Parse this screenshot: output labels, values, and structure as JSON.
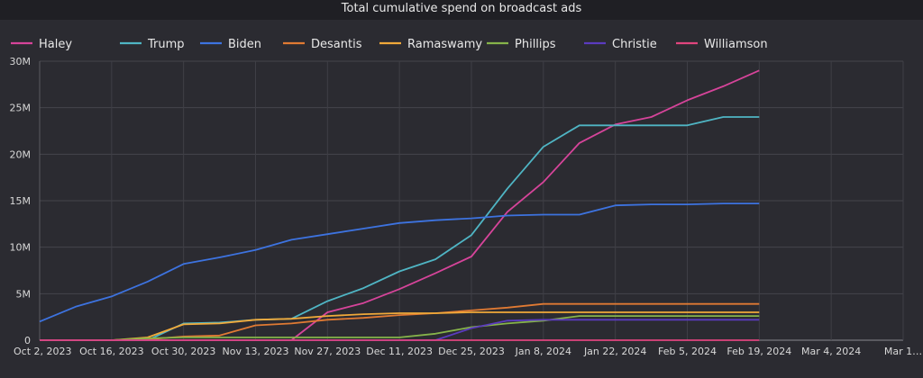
{
  "chart_data": {
    "type": "line",
    "title": "Total cumulative spend on broadcast ads",
    "x": [
      "Oct 2, 2023",
      "Oct 9, 2023",
      "Oct 16, 2023",
      "Oct 23, 2023",
      "Oct 30, 2023",
      "Nov 6, 2023",
      "Nov 13, 2023",
      "Nov 20, 2023",
      "Nov 27, 2023",
      "Dec 4, 2023",
      "Dec 11, 2023",
      "Dec 18, 2023",
      "Dec 25, 2023",
      "Jan 1, 2024",
      "Jan 8, 2024",
      "Jan 15, 2024",
      "Jan 22, 2024",
      "Jan 29, 2024",
      "Feb 5, 2024",
      "Feb 12, 2024",
      "Feb 19, 2024"
    ],
    "x_ticks": [
      "Oct 2, 2023",
      "Oct 16, 2023",
      "Oct 30, 2023",
      "Nov 13, 2023",
      "Nov 27, 2023",
      "Dec 11, 2023",
      "Dec 25, 2023",
      "Jan 8, 2024",
      "Jan 22, 2024",
      "Feb 5, 2024",
      "Feb 19, 2024",
      "Mar 4, 2024",
      "Mar 1…"
    ],
    "y_ticks": [
      "0",
      "5M",
      "10M",
      "15M",
      "20M",
      "25M",
      "30M"
    ],
    "ylim": [
      0,
      30000000
    ],
    "grid": true,
    "legend_position": "top-left",
    "series": [
      {
        "name": "Haley",
        "color": "#d6449a",
        "values": [
          0,
          0,
          0,
          0,
          0,
          0,
          0,
          0,
          3000000,
          4000000,
          5500000,
          7200000,
          9000000,
          13800000,
          17000000,
          21200000,
          23200000,
          24000000,
          25800000,
          27300000,
          29000000
        ]
      },
      {
        "name": "Trump",
        "color": "#4fb5c4",
        "values": [
          0,
          0,
          0,
          0,
          1800000,
          1900000,
          2200000,
          2300000,
          4200000,
          5600000,
          7400000,
          8700000,
          11300000,
          16300000,
          20800000,
          23100000,
          23100000,
          23100000,
          23100000,
          24000000,
          24000000
        ]
      },
      {
        "name": "Biden",
        "color": "#3d73e0",
        "values": [
          2000000,
          3600000,
          4700000,
          6300000,
          8200000,
          8900000,
          9700000,
          10800000,
          11400000,
          12000000,
          12600000,
          12900000,
          13100000,
          13400000,
          13500000,
          13500000,
          14500000,
          14600000,
          14600000,
          14700000,
          14700000
        ]
      },
      {
        "name": "Desantis",
        "color": "#e07a33",
        "values": [
          0,
          0,
          0,
          100000,
          400000,
          500000,
          1600000,
          1800000,
          2200000,
          2400000,
          2700000,
          2900000,
          3200000,
          3500000,
          3900000,
          3900000,
          3900000,
          3900000,
          3900000,
          3900000,
          3900000
        ]
      },
      {
        "name": "Ramaswamy",
        "color": "#f0a93a",
        "values": [
          0,
          0,
          0,
          300000,
          1700000,
          1800000,
          2200000,
          2300000,
          2600000,
          2800000,
          2900000,
          2900000,
          3000000,
          3000000,
          3000000,
          3000000,
          3000000,
          3000000,
          3000000,
          3000000,
          3000000
        ]
      },
      {
        "name": "Phillips",
        "color": "#86b34a",
        "values": [
          0,
          0,
          0,
          200000,
          300000,
          300000,
          300000,
          300000,
          300000,
          300000,
          300000,
          700000,
          1400000,
          1800000,
          2100000,
          2600000,
          2600000,
          2600000,
          2600000,
          2600000,
          2600000
        ]
      },
      {
        "name": "Christie",
        "color": "#5b3bbf",
        "values": [
          0,
          0,
          0,
          0,
          0,
          0,
          0,
          0,
          0,
          0,
          0,
          0,
          1300000,
          2100000,
          2200000,
          2200000,
          2200000,
          2200000,
          2200000,
          2200000,
          2200000
        ]
      },
      {
        "name": "Williamson",
        "color": "#e0457e",
        "values": [
          0,
          0,
          0,
          0,
          0,
          0,
          0,
          0,
          0,
          0,
          0,
          0,
          0,
          0,
          0,
          0,
          0,
          0,
          0,
          0,
          0
        ]
      }
    ]
  }
}
